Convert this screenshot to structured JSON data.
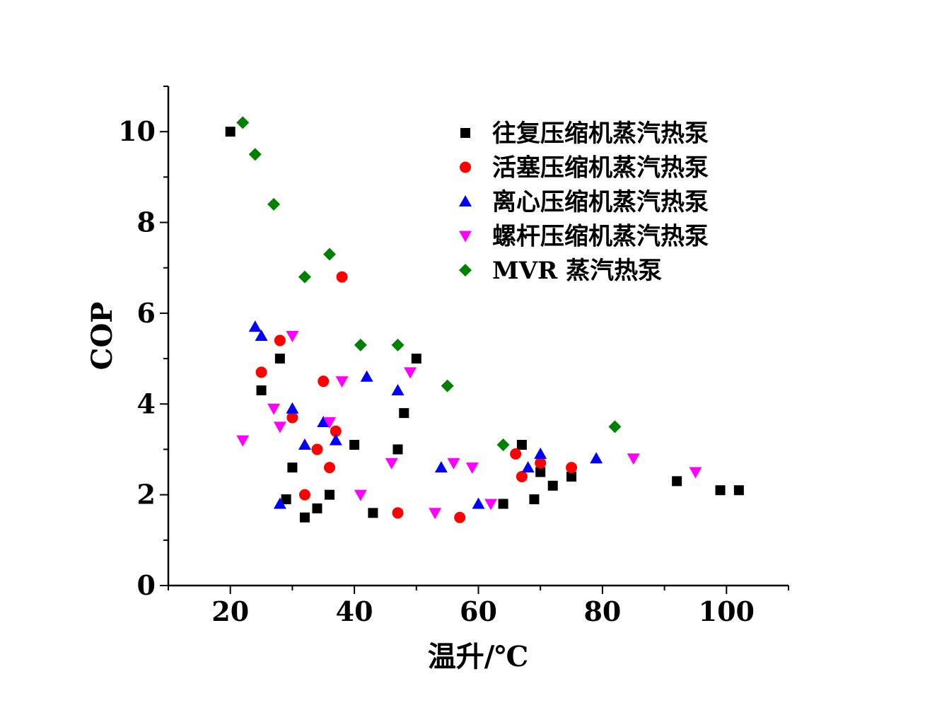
{
  "chart_data": {
    "type": "scatter",
    "xlabel": "温升/℃",
    "ylabel": "COP",
    "xlim": [
      10,
      110
    ],
    "ylim": [
      0,
      11
    ],
    "xticks": [
      20,
      40,
      60,
      80,
      100
    ],
    "yticks": [
      0,
      2,
      4,
      6,
      8,
      10
    ],
    "grid": false,
    "legend_position": "top-right",
    "series": [
      {
        "name": "往复压缩机蒸汽热泵",
        "marker": "square",
        "color": "#000000",
        "points": [
          [
            20,
            10.0
          ],
          [
            25,
            4.3
          ],
          [
            28,
            5.0
          ],
          [
            29,
            1.9
          ],
          [
            30,
            2.6
          ],
          [
            32,
            1.5
          ],
          [
            34,
            1.7
          ],
          [
            36,
            2.0
          ],
          [
            40,
            3.1
          ],
          [
            43,
            1.6
          ],
          [
            47,
            3.0
          ],
          [
            48,
            3.8
          ],
          [
            50,
            5.0
          ],
          [
            64,
            1.8
          ],
          [
            67,
            3.1
          ],
          [
            69,
            1.9
          ],
          [
            70,
            2.5
          ],
          [
            72,
            2.2
          ],
          [
            75,
            2.4
          ],
          [
            92,
            2.3
          ],
          [
            99,
            2.1
          ],
          [
            102,
            2.1
          ]
        ]
      },
      {
        "name": "活塞压缩机蒸汽热泵",
        "marker": "circle",
        "color": "#ff0000",
        "points": [
          [
            25,
            4.7
          ],
          [
            28,
            5.4
          ],
          [
            30,
            3.7
          ],
          [
            32,
            2.0
          ],
          [
            34,
            3.0
          ],
          [
            35,
            4.5
          ],
          [
            36,
            2.6
          ],
          [
            37,
            3.4
          ],
          [
            38,
            6.8
          ],
          [
            47,
            1.6
          ],
          [
            57,
            1.5
          ],
          [
            66,
            2.9
          ],
          [
            67,
            2.4
          ],
          [
            70,
            2.7
          ],
          [
            75,
            2.6
          ]
        ]
      },
      {
        "name": "离心压缩机蒸汽热泵",
        "marker": "triangle-up",
        "color": "#0000ff",
        "points": [
          [
            24,
            5.7
          ],
          [
            25,
            5.5
          ],
          [
            28,
            1.8
          ],
          [
            30,
            3.9
          ],
          [
            32,
            3.1
          ],
          [
            35,
            3.6
          ],
          [
            37,
            3.2
          ],
          [
            42,
            4.6
          ],
          [
            47,
            4.3
          ],
          [
            54,
            2.6
          ],
          [
            60,
            1.8
          ],
          [
            68,
            2.6
          ],
          [
            70,
            2.9
          ],
          [
            79,
            2.8
          ]
        ]
      },
      {
        "name": "螺杆压缩机蒸汽热泵",
        "marker": "triangle-down",
        "color": "#ff00ff",
        "points": [
          [
            22,
            3.2
          ],
          [
            27,
            3.9
          ],
          [
            28,
            3.5
          ],
          [
            30,
            5.5
          ],
          [
            36,
            3.6
          ],
          [
            38,
            4.5
          ],
          [
            41,
            2.0
          ],
          [
            46,
            2.7
          ],
          [
            49,
            4.7
          ],
          [
            53,
            1.6
          ],
          [
            56,
            2.7
          ],
          [
            59,
            2.6
          ],
          [
            62,
            1.8
          ],
          [
            85,
            2.8
          ],
          [
            95,
            2.5
          ]
        ]
      },
      {
        "name": "MVR 蒸汽热泵",
        "marker": "diamond",
        "color": "#008000",
        "points": [
          [
            22,
            10.2
          ],
          [
            24,
            9.5
          ],
          [
            27,
            8.4
          ],
          [
            32,
            6.8
          ],
          [
            36,
            7.3
          ],
          [
            41,
            5.3
          ],
          [
            47,
            5.3
          ],
          [
            55,
            4.4
          ],
          [
            64,
            3.1
          ],
          [
            82,
            3.5
          ]
        ]
      }
    ]
  }
}
